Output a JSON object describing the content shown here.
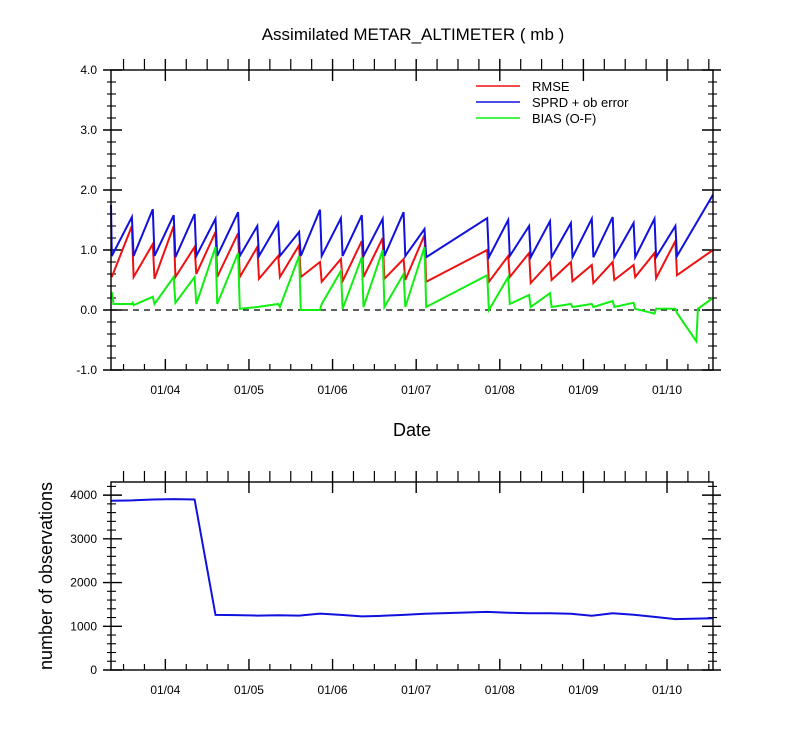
{
  "chart_data": [
    {
      "type": "line",
      "title": "Assimilated METAR_ALTIMETER ( mb )",
      "xlabel": "Date",
      "ylabel": "",
      "xlim": [
        3.35,
        10.55
      ],
      "ylim": [
        -1.0,
        4.0
      ],
      "y_ticks": [
        -1.0,
        0.0,
        1.0,
        2.0,
        3.0,
        4.0
      ],
      "y_tick_labels": [
        "-1.0",
        "0.0",
        "1.0",
        "2.0",
        "3.0",
        "4.0"
      ],
      "x_ticks": [
        4,
        5,
        6,
        7,
        8,
        9,
        10
      ],
      "x_tick_labels": [
        "01/04",
        "01/05",
        "01/06",
        "01/07",
        "01/08",
        "01/09",
        "01/10"
      ],
      "legend_position": "top-right",
      "reference_line": {
        "y": 0.0,
        "style": "dashed"
      },
      "colors": {
        "RMSE": "#ee1111",
        "SPRD + ob error": "#1111dd",
        "BIAS (O-F)": "#11ee11"
      },
      "series": [
        {
          "name": "RMSE",
          "color": "#ee1111",
          "points": [
            [
              3.36,
              0.55
            ],
            [
              3.6,
              1.4
            ],
            [
              3.62,
              0.55
            ],
            [
              3.85,
              1.1
            ],
            [
              3.87,
              0.52
            ],
            [
              4.1,
              1.4
            ],
            [
              4.12,
              0.55
            ],
            [
              4.35,
              1.05
            ],
            [
              4.37,
              0.6
            ],
            [
              4.6,
              1.3
            ],
            [
              4.62,
              0.55
            ],
            [
              4.87,
              1.28
            ],
            [
              4.89,
              0.55
            ],
            [
              5.1,
              1.05
            ],
            [
              5.12,
              0.52
            ],
            [
              5.35,
              0.9
            ],
            [
              5.37,
              0.55
            ],
            [
              5.6,
              1.08
            ],
            [
              5.62,
              0.55
            ],
            [
              5.85,
              0.8
            ],
            [
              5.87,
              0.47
            ],
            [
              6.1,
              0.85
            ],
            [
              6.12,
              0.48
            ],
            [
              6.35,
              1.15
            ],
            [
              6.37,
              0.55
            ],
            [
              6.6,
              1.2
            ],
            [
              6.62,
              0.52
            ],
            [
              6.85,
              0.85
            ],
            [
              6.87,
              0.5
            ],
            [
              7.1,
              1.25
            ],
            [
              7.12,
              0.47
            ],
            [
              7.85,
              1.0
            ],
            [
              7.87,
              0.47
            ],
            [
              8.1,
              0.9
            ],
            [
              8.12,
              0.55
            ],
            [
              8.35,
              0.95
            ],
            [
              8.37,
              0.45
            ],
            [
              8.6,
              0.8
            ],
            [
              8.62,
              0.5
            ],
            [
              8.85,
              0.8
            ],
            [
              8.87,
              0.48
            ],
            [
              9.1,
              0.75
            ],
            [
              9.12,
              0.45
            ],
            [
              9.35,
              0.8
            ],
            [
              9.37,
              0.5
            ],
            [
              9.6,
              0.75
            ],
            [
              9.62,
              0.55
            ],
            [
              9.85,
              0.95
            ],
            [
              9.87,
              0.53
            ],
            [
              10.1,
              1.15
            ],
            [
              10.12,
              0.58
            ],
            [
              10.55,
              1.0
            ]
          ]
        },
        {
          "name": "SPRD + ob error",
          "color": "#1111dd",
          "points": [
            [
              3.35,
              1.75
            ],
            [
              3.36,
              0.9
            ],
            [
              3.6,
              1.55
            ],
            [
              3.62,
              0.9
            ],
            [
              3.85,
              1.68
            ],
            [
              3.87,
              0.9
            ],
            [
              4.1,
              1.58
            ],
            [
              4.12,
              0.88
            ],
            [
              4.35,
              1.6
            ],
            [
              4.37,
              0.9
            ],
            [
              4.6,
              1.52
            ],
            [
              4.62,
              0.9
            ],
            [
              4.87,
              1.63
            ],
            [
              4.89,
              0.9
            ],
            [
              5.1,
              1.4
            ],
            [
              5.12,
              0.9
            ],
            [
              5.35,
              1.45
            ],
            [
              5.37,
              0.9
            ],
            [
              5.6,
              1.3
            ],
            [
              5.62,
              0.9
            ],
            [
              5.85,
              1.67
            ],
            [
              5.87,
              0.9
            ],
            [
              6.1,
              1.53
            ],
            [
              6.12,
              0.9
            ],
            [
              6.35,
              1.58
            ],
            [
              6.37,
              0.9
            ],
            [
              6.6,
              1.52
            ],
            [
              6.62,
              0.9
            ],
            [
              6.85,
              1.63
            ],
            [
              6.87,
              0.9
            ],
            [
              7.1,
              1.35
            ],
            [
              7.12,
              0.88
            ],
            [
              7.85,
              1.53
            ],
            [
              7.87,
              0.88
            ],
            [
              8.1,
              1.5
            ],
            [
              8.12,
              0.9
            ],
            [
              8.35,
              1.4
            ],
            [
              8.37,
              0.88
            ],
            [
              8.6,
              1.48
            ],
            [
              8.62,
              0.88
            ],
            [
              8.85,
              1.45
            ],
            [
              8.87,
              0.88
            ],
            [
              9.1,
              1.52
            ],
            [
              9.12,
              0.88
            ],
            [
              9.35,
              1.55
            ],
            [
              9.37,
              0.88
            ],
            [
              9.6,
              1.45
            ],
            [
              9.62,
              0.88
            ],
            [
              9.85,
              1.52
            ],
            [
              9.87,
              0.88
            ],
            [
              10.1,
              1.4
            ],
            [
              10.12,
              0.9
            ],
            [
              10.55,
              1.92
            ]
          ]
        },
        {
          "name": "BIAS (O-F)",
          "color": "#11ee11",
          "points": [
            [
              3.36,
              0.3
            ],
            [
              3.38,
              0.1
            ],
            [
              3.6,
              0.1
            ],
            [
              3.61,
              0.12
            ],
            [
              3.62,
              0.08
            ],
            [
              3.85,
              0.22
            ],
            [
              3.87,
              0.1
            ],
            [
              4.1,
              0.55
            ],
            [
              4.12,
              0.12
            ],
            [
              4.35,
              0.55
            ],
            [
              4.37,
              0.1
            ],
            [
              4.6,
              1.05
            ],
            [
              4.62,
              0.1
            ],
            [
              4.87,
              0.95
            ],
            [
              4.89,
              0.02
            ],
            [
              5.1,
              0.05
            ],
            [
              5.35,
              0.1
            ],
            [
              5.37,
              0.05
            ],
            [
              5.6,
              0.9
            ],
            [
              5.62,
              0.0
            ],
            [
              5.85,
              0.0
            ],
            [
              5.87,
              0.1
            ],
            [
              6.1,
              0.65
            ],
            [
              6.12,
              0.02
            ],
            [
              6.35,
              0.88
            ],
            [
              6.37,
              0.05
            ],
            [
              6.6,
              1.0
            ],
            [
              6.62,
              0.05
            ],
            [
              6.85,
              0.6
            ],
            [
              6.87,
              0.05
            ],
            [
              7.1,
              1.05
            ],
            [
              7.12,
              0.05
            ],
            [
              7.85,
              0.58
            ],
            [
              7.87,
              0.0
            ],
            [
              8.1,
              0.55
            ],
            [
              8.12,
              0.1
            ],
            [
              8.35,
              0.25
            ],
            [
              8.37,
              0.05
            ],
            [
              8.6,
              0.28
            ],
            [
              8.62,
              0.05
            ],
            [
              8.85,
              0.1
            ],
            [
              8.87,
              0.05
            ],
            [
              9.1,
              0.1
            ],
            [
              9.12,
              0.05
            ],
            [
              9.35,
              0.15
            ],
            [
              9.37,
              0.05
            ],
            [
              9.6,
              0.12
            ],
            [
              9.62,
              0.02
            ],
            [
              9.85,
              -0.06
            ],
            [
              9.87,
              0.02
            ],
            [
              10.1,
              0.02
            ],
            [
              10.12,
              -0.05
            ],
            [
              10.35,
              -0.52
            ],
            [
              10.37,
              0.02
            ],
            [
              10.55,
              0.2
            ]
          ]
        }
      ]
    },
    {
      "type": "line",
      "title": "",
      "xlabel": "",
      "ylabel": "number of observations",
      "xlim": [
        3.35,
        10.55
      ],
      "ylim": [
        0,
        4300
      ],
      "y_ticks": [
        0,
        1000,
        2000,
        3000,
        4000
      ],
      "y_tick_labels": [
        "0",
        "1000",
        "2000",
        "3000",
        "4000"
      ],
      "x_ticks": [
        4,
        5,
        6,
        7,
        8,
        9,
        10
      ],
      "x_tick_labels": [
        "01/04",
        "01/05",
        "01/06",
        "01/07",
        "01/08",
        "01/09",
        "01/10"
      ],
      "series": [
        {
          "name": "observations",
          "color": "#1111dd",
          "points": [
            [
              3.35,
              3870
            ],
            [
              3.6,
              3880
            ],
            [
              3.85,
              3900
            ],
            [
              4.1,
              3910
            ],
            [
              4.35,
              3900
            ],
            [
              4.6,
              1260
            ],
            [
              4.85,
              1255
            ],
            [
              5.1,
              1245
            ],
            [
              5.35,
              1250
            ],
            [
              5.6,
              1245
            ],
            [
              5.85,
              1290
            ],
            [
              6.1,
              1260
            ],
            [
              6.35,
              1225
            ],
            [
              6.6,
              1240
            ],
            [
              6.85,
              1260
            ],
            [
              7.1,
              1285
            ],
            [
              7.85,
              1330
            ],
            [
              8.1,
              1310
            ],
            [
              8.35,
              1300
            ],
            [
              8.6,
              1300
            ],
            [
              8.85,
              1285
            ],
            [
              9.1,
              1240
            ],
            [
              9.35,
              1300
            ],
            [
              9.6,
              1265
            ],
            [
              9.85,
              1215
            ],
            [
              10.1,
              1165
            ],
            [
              10.55,
              1185
            ]
          ]
        }
      ]
    }
  ]
}
